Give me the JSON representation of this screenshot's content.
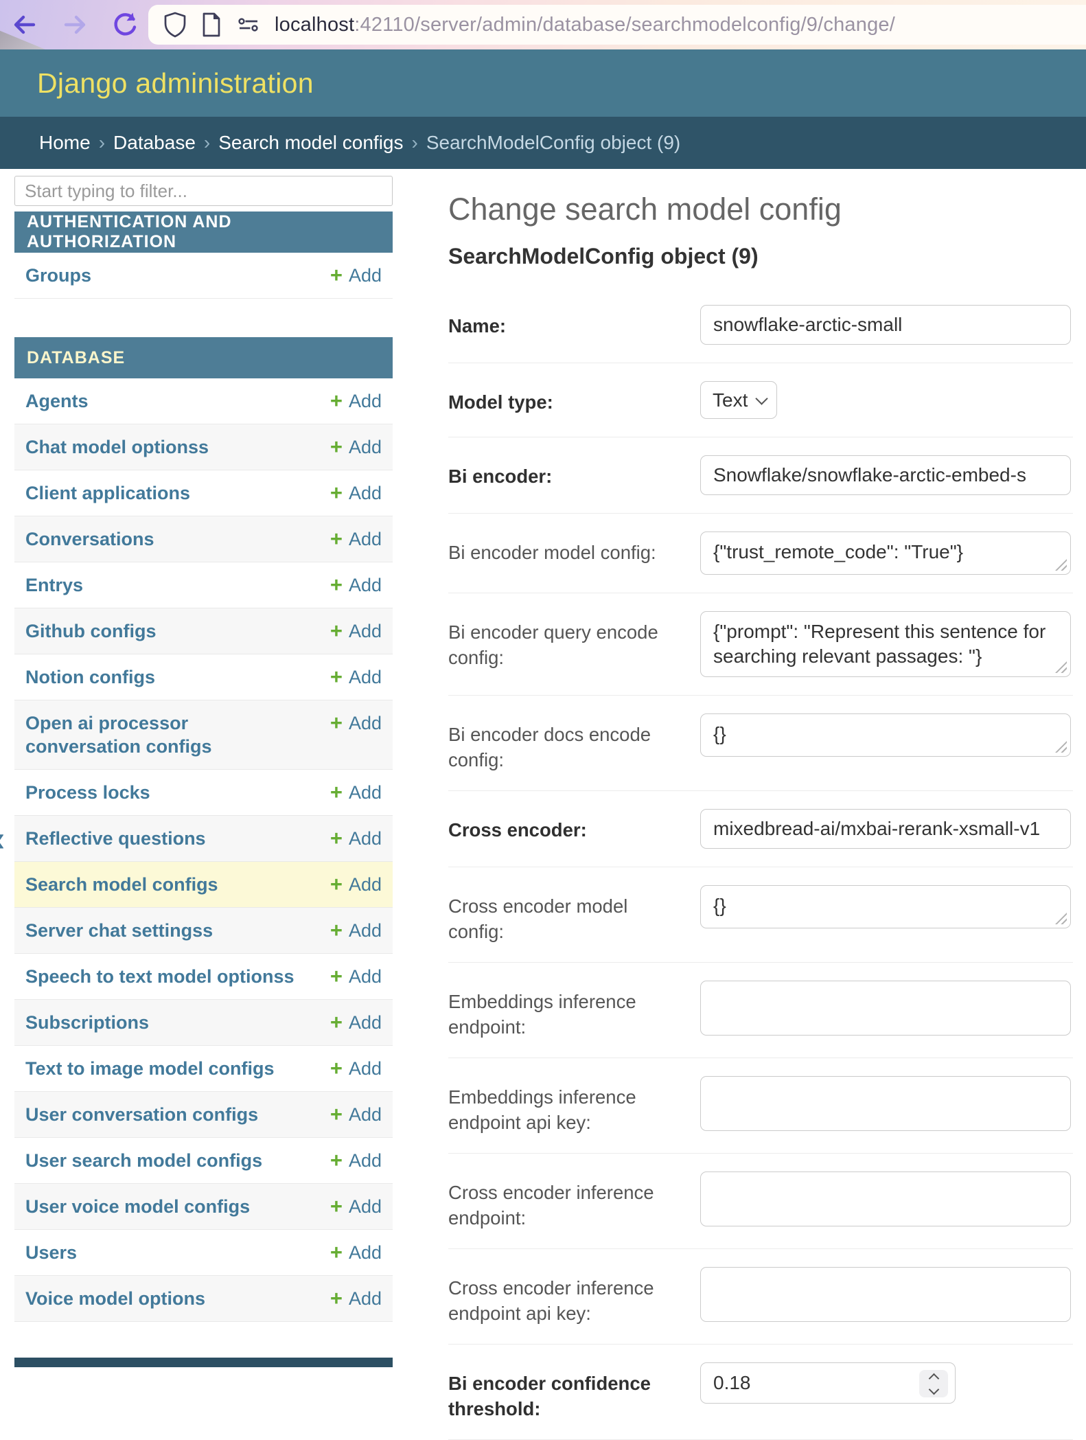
{
  "browser": {
    "url_host": "localhost",
    "url_path": ":42110/server/admin/database/searchmodelconfig/9/change/"
  },
  "header": {
    "title": "Django administration"
  },
  "breadcrumb": {
    "items": [
      "Home",
      "Database",
      "Search model configs"
    ],
    "separator": "›",
    "current": "SearchModelConfig object (9)"
  },
  "sidebar": {
    "filter_placeholder": "Start typing to filter...",
    "toggle_glyph": "‹",
    "add_plus": "+",
    "add_label": "Add",
    "sections": [
      {
        "title": "AUTHENTICATION AND AUTHORIZATION",
        "current_app": false,
        "items": [
          {
            "label": "Groups"
          }
        ]
      },
      {
        "title": "DATABASE",
        "current_app": true,
        "items": [
          {
            "label": "Agents"
          },
          {
            "label": "Chat model optionss"
          },
          {
            "label": "Client applications"
          },
          {
            "label": "Conversations"
          },
          {
            "label": "Entrys"
          },
          {
            "label": "Github configs"
          },
          {
            "label": "Notion configs"
          },
          {
            "label": "Open ai processor conversation configs"
          },
          {
            "label": "Process locks"
          },
          {
            "label": "Reflective questions"
          },
          {
            "label": "Search model configs",
            "selected": true
          },
          {
            "label": "Server chat settingss"
          },
          {
            "label": "Speech to text model optionss"
          },
          {
            "label": "Subscriptions"
          },
          {
            "label": "Text to image model configs"
          },
          {
            "label": "User conversation configs"
          },
          {
            "label": "User search model configs"
          },
          {
            "label": "User voice model configs"
          },
          {
            "label": "Users"
          },
          {
            "label": "Voice model options"
          }
        ]
      }
    ]
  },
  "main": {
    "page_title": "Change search model config",
    "object_title": "SearchModelConfig object (9)",
    "fields": [
      {
        "name": "name",
        "label": "Name:",
        "type": "text",
        "value": "snowflake-arctic-small",
        "required": true
      },
      {
        "name": "model-type",
        "label": "Model type:",
        "type": "select",
        "value": "Text",
        "required": true
      },
      {
        "name": "bi-encoder",
        "label": "Bi encoder:",
        "type": "text",
        "value": "Snowflake/snowflake-arctic-embed-s",
        "required": true
      },
      {
        "name": "bi-encoder-model-config",
        "label": "Bi encoder model config:",
        "type": "textarea",
        "value": "{\"trust_remote_code\": \"True\"}"
      },
      {
        "name": "bi-encoder-query-encode-config",
        "label": "Bi encoder query encode config:",
        "type": "textarea",
        "value": "{\"prompt\": \"Represent this sentence for searching relevant passages: \"}",
        "tall": true
      },
      {
        "name": "bi-encoder-docs-encode-config",
        "label": "Bi encoder docs encode config:",
        "type": "textarea",
        "value": "{}"
      },
      {
        "name": "cross-encoder",
        "label": "Cross encoder:",
        "type": "text",
        "value": "mixedbread-ai/mxbai-rerank-xsmall-v1",
        "required": true
      },
      {
        "name": "cross-encoder-model-config",
        "label": "Cross encoder model config:",
        "type": "textarea",
        "value": "{}"
      },
      {
        "name": "embeddings-inference-endpoint",
        "label": "Embeddings inference endpoint:",
        "type": "text_tall",
        "value": ""
      },
      {
        "name": "embeddings-inference-endpoint-api-key",
        "label": "Embeddings inference endpoint api key:",
        "type": "text_tall",
        "value": ""
      },
      {
        "name": "cross-encoder-inference-endpoint",
        "label": "Cross encoder inference endpoint:",
        "type": "text_tall",
        "value": ""
      },
      {
        "name": "cross-encoder-inference-endpoint-api-key",
        "label": "Cross encoder inference endpoint api key:",
        "type": "text_tall",
        "value": ""
      },
      {
        "name": "bi-encoder-confidence-threshold",
        "label": "Bi encoder confidence threshold:",
        "type": "number",
        "value": "0.18",
        "required": true
      }
    ]
  }
}
